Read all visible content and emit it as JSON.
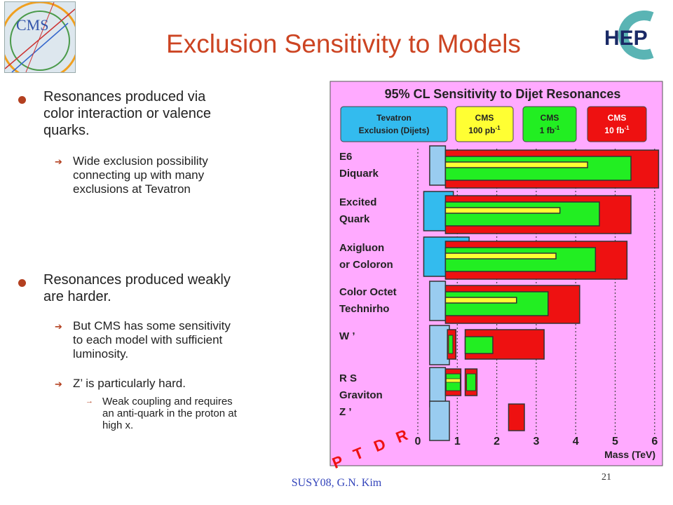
{
  "slide": {
    "title": "Exclusion Sensitivity to Models",
    "footer": "SUSY08, G.N. Kim",
    "page_number": "21"
  },
  "logos": {
    "left_text": "CMS",
    "right_text": "HEP"
  },
  "bullets": [
    {
      "text": [
        "Resonances produced via",
        "color interaction or valence",
        "quarks."
      ],
      "subs": [
        {
          "text": [
            "Wide exclusion possibility",
            "connecting up with many",
            "exclusions at Tevatron"
          ],
          "subsubs": []
        }
      ]
    },
    {
      "text": [
        "Resonances produced weakly",
        "are harder."
      ],
      "subs": [
        {
          "text": [
            "But CMS has some sensitivity",
            "to each model with sufficient",
            "luminosity."
          ],
          "subsubs": []
        },
        {
          "text": [
            "Z’ is particularly hard."
          ],
          "subsubs": [
            {
              "text": [
                "Weak coupling and requires",
                "an anti-quark in the proton at",
                "high x."
              ]
            }
          ]
        }
      ]
    }
  ],
  "chart_data": {
    "type": "bar",
    "title": "95% CL Sensitivity to Dijet Resonances",
    "xlabel": "Mass (TeV)",
    "xlim": [
      0,
      6
    ],
    "xticks": [
      "0",
      "1",
      "2",
      "3",
      "4",
      "5",
      "6"
    ],
    "watermark": "P T D R",
    "legend": [
      {
        "label": [
          "Tevatron",
          "Exclusion (Dijets)"
        ],
        "color": "#33bbee"
      },
      {
        "label": [
          "CMS",
          "100 pb",
          "-1"
        ],
        "color": "#ffff33"
      },
      {
        "label": [
          "CMS",
          "1 fb",
          "-1"
        ],
        "color": "#22ee22"
      },
      {
        "label": [
          "CMS",
          "10 fb",
          "-1"
        ],
        "color": "#ee1111"
      }
    ],
    "colors": {
      "tevatron": "#33bbee",
      "tevatron_light": "#99ccf0",
      "cms_100pb": "#ffff33",
      "cms_1fb": "#22ee22",
      "cms_10fb": "#ee1111",
      "panel": "#ffaaff"
    },
    "categories": [
      {
        "label": [
          "E6",
          "Diquark"
        ],
        "tevatron": [
          0.3,
          0.7
        ],
        "cms_10fb": [
          0.7,
          6.1
        ],
        "cms_1fb": [
          0.7,
          5.4
        ],
        "cms_100pb": [
          0.7,
          4.3
        ]
      },
      {
        "label": [
          "Excited",
          "Quark"
        ],
        "tevatron": [
          0.15,
          0.9
        ],
        "cms_10fb": [
          0.7,
          5.4
        ],
        "cms_1fb": [
          0.7,
          4.6
        ],
        "cms_100pb": [
          0.7,
          3.6
        ]
      },
      {
        "label": [
          "Axigluon",
          "or Coloron"
        ],
        "tevatron": [
          0.15,
          1.3
        ],
        "cms_10fb": [
          0.7,
          5.3
        ],
        "cms_1fb": [
          0.7,
          4.5
        ],
        "cms_100pb": [
          0.7,
          3.5
        ]
      },
      {
        "label": [
          "Color Octet",
          "Technirho"
        ],
        "tevatron": [
          0.3,
          0.7
        ],
        "cms_10fb": [
          0.7,
          4.1
        ],
        "cms_1fb": [
          0.7,
          3.3
        ],
        "cms_100pb": [
          0.7,
          2.5
        ]
      },
      {
        "label": [
          "W ’"
        ],
        "tevatron": [
          0.3,
          0.8
        ],
        "cms_10fb": [
          1.2,
          3.2
        ],
        "cms_1fb": [
          1.2,
          1.9
        ],
        "cms_100pb": null
      },
      {
        "label": [
          "R S",
          "Graviton"
        ],
        "tevatron": [
          0.3,
          0.7
        ],
        "cms_10fb": [
          1.2,
          1.5
        ],
        "cms_1fb": [
          1.2,
          1.5
        ],
        "cms_100pb": null
      },
      {
        "label": [
          "Z ’"
        ],
        "tevatron": [
          0.3,
          0.8
        ],
        "cms_10fb": [
          2.3,
          2.7
        ],
        "cms_1fb": null,
        "cms_100pb": null
      }
    ]
  }
}
